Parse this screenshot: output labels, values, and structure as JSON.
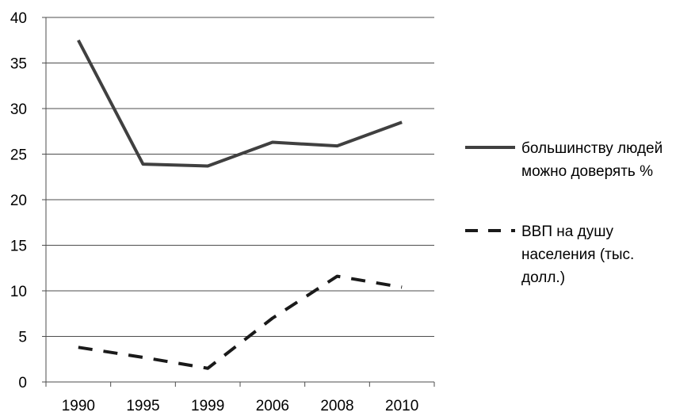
{
  "chart_data": {
    "type": "line",
    "title": "",
    "xlabel": "",
    "ylabel": "",
    "categories": [
      "1990",
      "1995",
      "1999",
      "2006",
      "2008",
      "2010"
    ],
    "ylim": [
      0,
      40
    ],
    "yticks": [
      "0",
      "5",
      "10",
      "15",
      "20",
      "25",
      "30",
      "35",
      "40"
    ],
    "grid": true,
    "legend_position": "right",
    "series": [
      {
        "name": "большинству людей можно доверять %",
        "legend_lines": [
          "большинству людей",
          "можно доверять %"
        ],
        "values": [
          37.5,
          23.9,
          23.7,
          26.3,
          25.9,
          28.5
        ],
        "style": "solid",
        "color": "#404040"
      },
      {
        "name": "ВВП на душу населения (тыс. долл.)",
        "legend_lines": [
          "ВВП на душу",
          "населения (тыс.",
          "долл.)"
        ],
        "values": [
          3.8,
          2.7,
          1.5,
          7.0,
          11.6,
          10.4
        ],
        "style": "dashed",
        "color": "#1a1a1a"
      }
    ]
  }
}
